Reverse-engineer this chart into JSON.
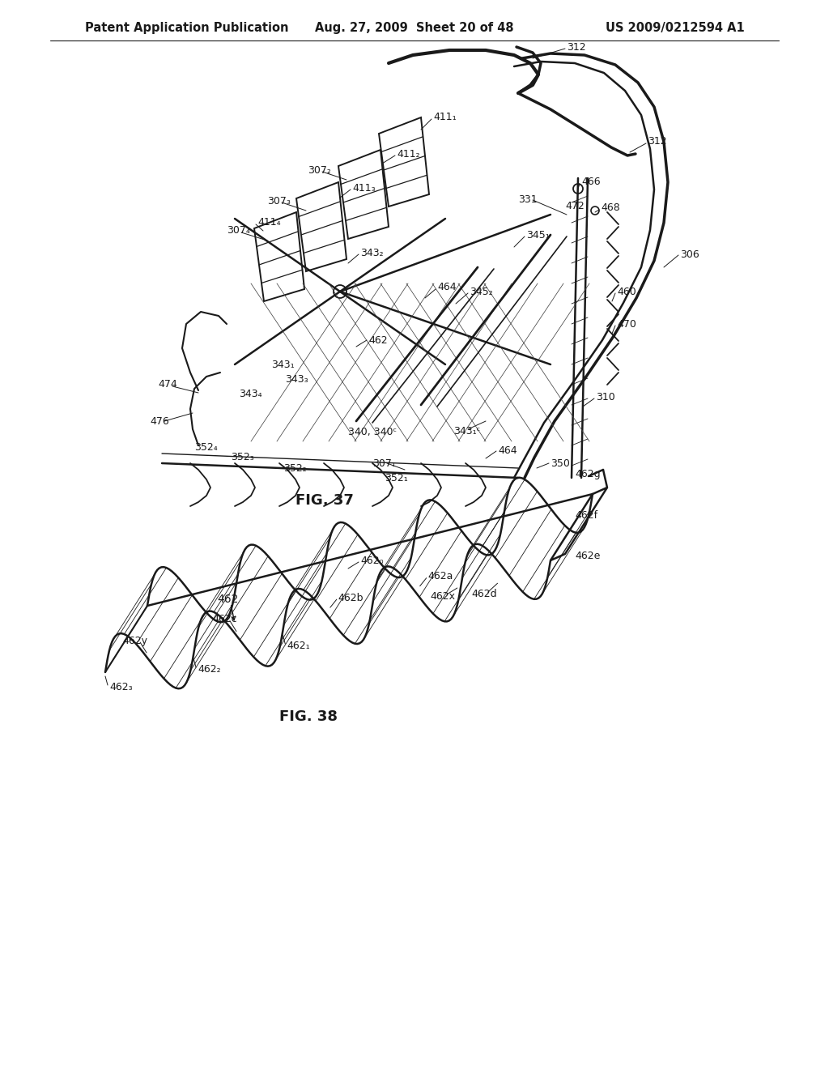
{
  "background_color": "#ffffff",
  "header_left": "Patent Application Publication",
  "header_center": "Aug. 27, 2009  Sheet 20 of 48",
  "header_right": "US 2009/0212594 A1",
  "fig37_caption": "FIG. 37",
  "fig38_caption": "FIG. 38",
  "line_color": "#1a1a1a",
  "text_color": "#1a1a1a",
  "header_font_size": 10.5,
  "caption_font_size": 13,
  "label_font_size": 9.0
}
